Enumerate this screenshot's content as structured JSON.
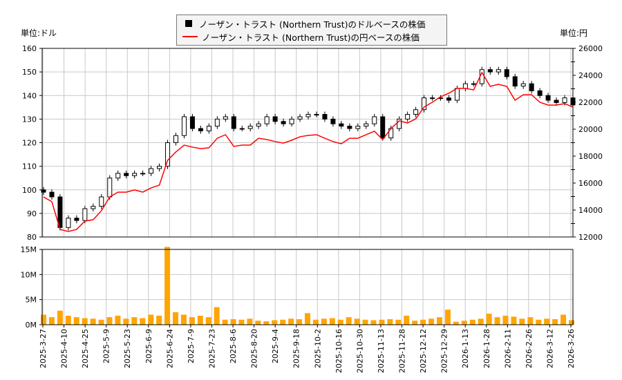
{
  "units": {
    "left": "単位:ドル",
    "right": "単位:円"
  },
  "legend": {
    "usd": "ノーザン・トラスト (Northern Trust)のドルベースの株価",
    "jpy": "ノーザン・トラスト (Northern Trust)の円ベースの株価"
  },
  "colors": {
    "candle": "#000000",
    "jpy_line": "#ff0000",
    "volume": "#ffa500",
    "grid": "#c8c8c8"
  },
  "chart_data": [
    {
      "type": "candlestick+line",
      "series": [
        {
          "name": "ノーザン・トラスト (Northern Trust)のドルベースの株価",
          "axis": "left",
          "values": [
            99,
            97,
            84,
            88,
            87,
            92,
            93,
            97,
            105,
            107,
            106,
            107,
            107,
            109,
            110,
            120,
            123,
            131,
            126,
            125,
            127,
            130,
            131,
            126,
            126,
            127,
            128,
            131,
            129,
            128,
            130,
            131,
            132,
            132,
            130,
            128,
            127,
            126,
            127,
            128,
            131,
            122,
            126,
            130,
            132,
            134,
            139,
            139,
            139,
            138,
            143,
            145,
            145,
            151,
            150,
            151,
            148,
            144,
            145,
            142,
            140,
            138,
            137,
            139,
            136
          ]
        },
        {
          "name": "ノーザン・トラスト (Northern Trust)の円ベースの株価",
          "axis": "right",
          "values": [
            14970,
            14620,
            12560,
            12410,
            12560,
            13180,
            13280,
            13950,
            14970,
            15330,
            15330,
            15490,
            15330,
            15640,
            15850,
            17690,
            18310,
            18820,
            18670,
            18560,
            18620,
            19330,
            19590,
            18720,
            18820,
            18820,
            19330,
            19230,
            19080,
            18970,
            19180,
            19440,
            19540,
            19590,
            19330,
            19080,
            18920,
            19330,
            19330,
            19590,
            19850,
            19230,
            20050,
            20620,
            20460,
            20770,
            21640,
            22000,
            22410,
            22670,
            23030,
            23030,
            22920,
            24210,
            23180,
            23330,
            23180,
            22150,
            22560,
            22560,
            22000,
            21790,
            21790,
            21900,
            21640
          ]
        }
      ],
      "y_left": {
        "ylim": [
          80,
          160
        ],
        "ticks": [
          "80",
          "90",
          "100",
          "110",
          "120",
          "130",
          "140",
          "150",
          "160"
        ]
      },
      "y_right": {
        "ylim": [
          12000,
          26000
        ],
        "ticks": [
          "12000",
          "14000",
          "16000",
          "18000",
          "20000",
          "22000",
          "24000",
          "26000"
        ]
      },
      "grid": true
    },
    {
      "type": "bar",
      "unit": "M",
      "values": [
        2.0,
        1.5,
        2.8,
        1.8,
        1.5,
        1.3,
        1.2,
        1.0,
        1.5,
        1.8,
        1.2,
        1.5,
        1.3,
        2.0,
        1.8,
        15.5,
        2.5,
        2.0,
        1.5,
        1.8,
        1.5,
        3.5,
        1.0,
        1.1,
        1.0,
        1.2,
        0.8,
        0.7,
        0.9,
        1.0,
        1.2,
        1.1,
        2.3,
        1.0,
        1.2,
        1.3,
        1.0,
        1.5,
        1.2,
        1.0,
        0.9,
        1.0,
        1.1,
        1.0,
        1.8,
        0.8,
        1.0,
        1.2,
        1.5,
        3.0,
        0.6,
        0.8,
        1.0,
        1.2,
        2.2,
        1.5,
        1.8,
        1.6,
        1.2,
        1.5,
        1.0,
        1.2,
        1.1,
        2.0,
        0.9
      ],
      "ylim": [
        0,
        15
      ],
      "ticks": [
        "0M",
        "5M",
        "10M",
        "15M"
      ],
      "grid": true
    }
  ],
  "x_ticks": [
    "2025-3-27",
    "2025-4-10",
    "2025-4-25",
    "2025-5-9",
    "2025-5-23",
    "2025-6-9",
    "2025-6-24",
    "2025-7-9",
    "2025-7-23",
    "2025-8-6",
    "2025-8-20",
    "2025-9-4",
    "2025-9-18",
    "2025-10-2",
    "2025-10-16",
    "2025-10-30",
    "2025-11-13",
    "2025-11-28",
    "2025-12-12",
    "2025-12-29",
    "2026-1-13",
    "2026-1-28",
    "2026-2-11",
    "2026-2-26",
    "2026-3-12",
    "2026-3-26"
  ]
}
